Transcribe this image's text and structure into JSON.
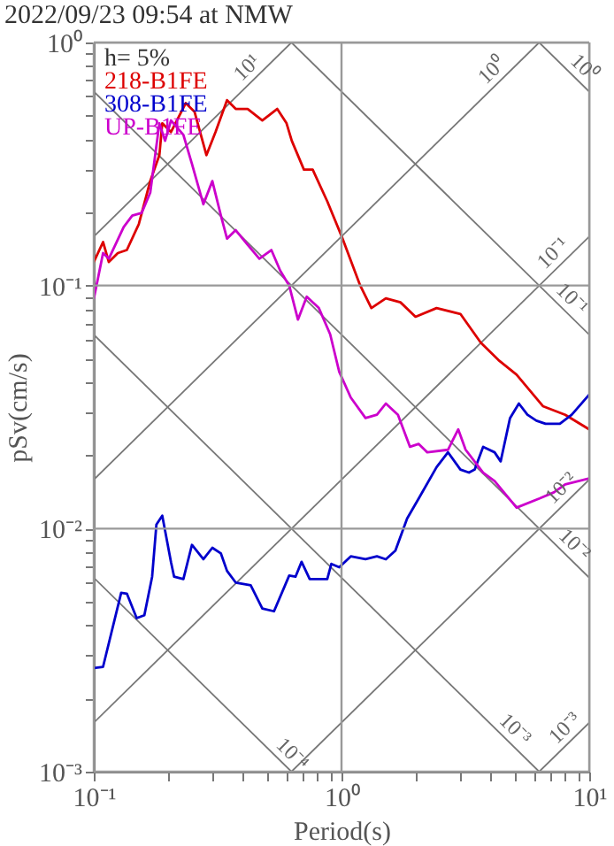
{
  "chart_data": {
    "type": "line",
    "title": "2022/09/23 09:54 at NMW",
    "xlabel": "Period(s)",
    "ylabel": "pSv(cm/s)",
    "log": "xy",
    "grid": true,
    "legend": "top left",
    "xlim": [
      0.1,
      10
    ],
    "ylim": [
      0.001,
      1
    ],
    "xticks": [
      {
        "value": 0.1,
        "label": "10⁻¹"
      },
      {
        "value": 0.2,
        "label": null
      },
      {
        "value": 0.3,
        "label": null
      },
      {
        "value": 0.4,
        "label": null
      },
      {
        "value": 0.5,
        "label": null
      },
      {
        "value": 0.6,
        "label": null
      },
      {
        "value": 0.7,
        "label": null
      },
      {
        "value": 0.8,
        "label": null
      },
      {
        "value": 0.9,
        "label": null
      },
      {
        "value": 1,
        "label": "10⁰"
      },
      {
        "value": 2,
        "label": null
      },
      {
        "value": 3,
        "label": null
      },
      {
        "value": 4,
        "label": null
      },
      {
        "value": 5,
        "label": null
      },
      {
        "value": 6,
        "label": null
      },
      {
        "value": 7,
        "label": null
      },
      {
        "value": 8,
        "label": null
      },
      {
        "value": 9,
        "label": null
      },
      {
        "value": 10,
        "label": "10¹"
      }
    ],
    "yticks": [
      {
        "value": 0.001,
        "label": "10⁻³"
      },
      {
        "value": 0.002,
        "label": null
      },
      {
        "value": 0.003,
        "label": null
      },
      {
        "value": 0.004,
        "label": null
      },
      {
        "value": 0.005,
        "label": null
      },
      {
        "value": 0.006,
        "label": null
      },
      {
        "value": 0.007,
        "label": null
      },
      {
        "value": 0.008,
        "label": null
      },
      {
        "value": 0.009,
        "label": null
      },
      {
        "value": 0.01,
        "label": "10⁻²"
      },
      {
        "value": 0.02,
        "label": null
      },
      {
        "value": 0.03,
        "label": null
      },
      {
        "value": 0.04,
        "label": null
      },
      {
        "value": 0.05,
        "label": null
      },
      {
        "value": 0.06,
        "label": null
      },
      {
        "value": 0.07,
        "label": null
      },
      {
        "value": 0.08,
        "label": null
      },
      {
        "value": 0.09,
        "label": null
      },
      {
        "value": 0.1,
        "label": "10⁻¹"
      },
      {
        "value": 0.2,
        "label": null
      },
      {
        "value": 0.3,
        "label": null
      },
      {
        "value": 0.4,
        "label": null
      },
      {
        "value": 0.5,
        "label": null
      },
      {
        "value": 0.6,
        "label": null
      },
      {
        "value": 0.7,
        "label": null
      },
      {
        "value": 0.8,
        "label": null
      },
      {
        "value": 0.9,
        "label": null
      },
      {
        "value": 1,
        "label": "10⁰"
      }
    ],
    "annotations": [
      "h= 5%",
      {
        "text": "10¹",
        "x": 0.454,
        "y": 0.72
      },
      {
        "text": "10⁰",
        "x": 4.41,
        "y": 0.7
      },
      {
        "text": "10⁻¹",
        "x": 7.8,
        "y": 0.124
      },
      {
        "text": "10⁻²",
        "x": 8.4,
        "y": 0.0134
      },
      {
        "text": "10⁻³",
        "x": 8.7,
        "y": 0.00138
      },
      {
        "text": "10⁰",
        "x": 8.73,
        "y": 0.72
      },
      {
        "text": "10⁻¹",
        "x": 7.8,
        "y": 0.0805
      },
      {
        "text": "10⁻²",
        "x": 8.0,
        "y": 0.00785
      },
      {
        "text": "10⁻³",
        "x": 4.6,
        "y": 0.001365
      },
      {
        "text": "10⁻⁴",
        "x": 0.58,
        "y": 0.00108
      }
    ],
    "series": [
      {
        "color": "#777777",
        "x": [
          0.1,
          0.628
        ],
        "values": [
          0.159,
          1
        ]
      },
      {
        "color": "#777777",
        "x": [
          0.1,
          6.28
        ],
        "values": [
          0.0159,
          1
        ]
      },
      {
        "color": "#777777",
        "x": [
          0.1,
          10
        ],
        "values": [
          0.00159,
          0.159
        ]
      },
      {
        "color": "#777777",
        "x": [
          0.628,
          10
        ],
        "values": [
          0.001,
          0.0159
        ]
      },
      {
        "color": "#777777",
        "x": [
          6.28,
          10
        ],
        "values": [
          0.001,
          0.00159
        ]
      },
      {
        "color": "#777777",
        "x": [
          6.28,
          10
        ],
        "values": [
          1,
          0.628
        ]
      },
      {
        "color": "#777777",
        "x": [
          0.628,
          10
        ],
        "values": [
          1,
          0.0628
        ]
      },
      {
        "color": "#777777",
        "x": [
          0.1,
          10
        ],
        "values": [
          0.628,
          0.00628
        ]
      },
      {
        "color": "#777777",
        "x": [
          0.1,
          6.28
        ],
        "values": [
          0.0628,
          0.001
        ]
      },
      {
        "color": "#777777",
        "x": [
          0.1,
          0.628
        ],
        "values": [
          0.00628,
          0.001
        ]
      },
      {
        "name": "218-B1FE",
        "color": "#dd0000",
        "x": [
          0.1,
          0.109,
          0.115,
          0.125,
          0.136,
          0.152,
          0.169,
          0.184,
          0.189,
          0.205,
          0.235,
          0.255,
          0.285,
          0.31,
          0.345,
          0.374,
          0.418,
          0.479,
          0.55,
          0.6,
          0.63,
          0.705,
          0.765,
          0.876,
          1.0,
          1.19,
          1.32,
          1.51,
          1.73,
          1.99,
          2.42,
          3.02,
          3.65,
          4.3,
          5.09,
          6.5,
          8.0,
          10
        ],
        "values": [
          0.125,
          0.151,
          0.125,
          0.136,
          0.14,
          0.179,
          0.269,
          0.344,
          0.465,
          0.428,
          0.563,
          0.519,
          0.344,
          0.428,
          0.579,
          0.533,
          0.533,
          0.478,
          0.533,
          0.465,
          0.394,
          0.3,
          0.3,
          0.222,
          0.16,
          0.1,
          0.0808,
          0.0886,
          0.0853,
          0.0744,
          0.0808,
          0.0764,
          0.0582,
          0.0494,
          0.043,
          0.0319,
          0.0294,
          0.0256
        ]
      },
      {
        "name": "308-B1FE",
        "color": "#0000cc",
        "x": [
          0.1,
          0.109,
          0.129,
          0.136,
          0.149,
          0.16,
          0.172,
          0.179,
          0.189,
          0.205,
          0.211,
          0.23,
          0.249,
          0.277,
          0.301,
          0.326,
          0.345,
          0.374,
          0.43,
          0.479,
          0.534,
          0.615,
          0.652,
          0.69,
          0.744,
          0.876,
          0.91,
          0.979,
          1.09,
          1.25,
          1.39,
          1.51,
          1.65,
          1.84,
          2.05,
          2.42,
          2.69,
          3.02,
          3.27,
          3.45,
          3.73,
          4.15,
          4.39,
          4.79,
          5.2,
          5.63,
          6.12,
          6.66,
          7.61,
          8.5,
          10
        ],
        "values": [
          0.00267,
          0.0027,
          0.00544,
          0.0054,
          0.00428,
          0.0044,
          0.00634,
          0.0104,
          0.0113,
          0.00728,
          0.00634,
          0.0062,
          0.00857,
          0.00748,
          0.00834,
          0.0079,
          0.0067,
          0.006,
          0.00585,
          0.00469,
          0.00457,
          0.00641,
          0.00634,
          0.0073,
          0.0062,
          0.0062,
          0.00716,
          0.00693,
          0.00769,
          0.00748,
          0.00769,
          0.00748,
          0.00811,
          0.011,
          0.0133,
          0.0179,
          0.0206,
          0.0175,
          0.017,
          0.0175,
          0.0217,
          0.0206,
          0.0189,
          0.0285,
          0.0327,
          0.0294,
          0.0278,
          0.027,
          0.027,
          0.0294,
          0.0356
        ]
      },
      {
        "name": "UP-B1FE",
        "color": "#cc00cc",
        "x": [
          0.1,
          0.109,
          0.115,
          0.132,
          0.143,
          0.156,
          0.169,
          0.184,
          0.194,
          0.205,
          0.23,
          0.249,
          0.277,
          0.301,
          0.326,
          0.345,
          0.374,
          0.418,
          0.466,
          0.521,
          0.566,
          0.615,
          0.667,
          0.724,
          0.81,
          0.9,
          0.979,
          1.09,
          1.25,
          1.39,
          1.51,
          1.69,
          1.89,
          2.05,
          2.22,
          2.69,
          2.96,
          3.17,
          3.73,
          4.15,
          5.09,
          6.3,
          7.2,
          8.0,
          10
        ],
        "values": [
          0.088,
          0.136,
          0.129,
          0.174,
          0.194,
          0.199,
          0.241,
          0.465,
          0.394,
          0.478,
          0.417,
          0.317,
          0.216,
          0.269,
          0.194,
          0.156,
          0.169,
          0.147,
          0.129,
          0.14,
          0.115,
          0.1,
          0.0724,
          0.09,
          0.0808,
          0.063,
          0.0442,
          0.0346,
          0.0285,
          0.0294,
          0.0327,
          0.0294,
          0.0217,
          0.0223,
          0.0206,
          0.0211,
          0.0256,
          0.0211,
          0.017,
          0.0157,
          0.0122,
          0.0133,
          0.0141,
          0.0152,
          0.0161
        ]
      }
    ]
  }
}
